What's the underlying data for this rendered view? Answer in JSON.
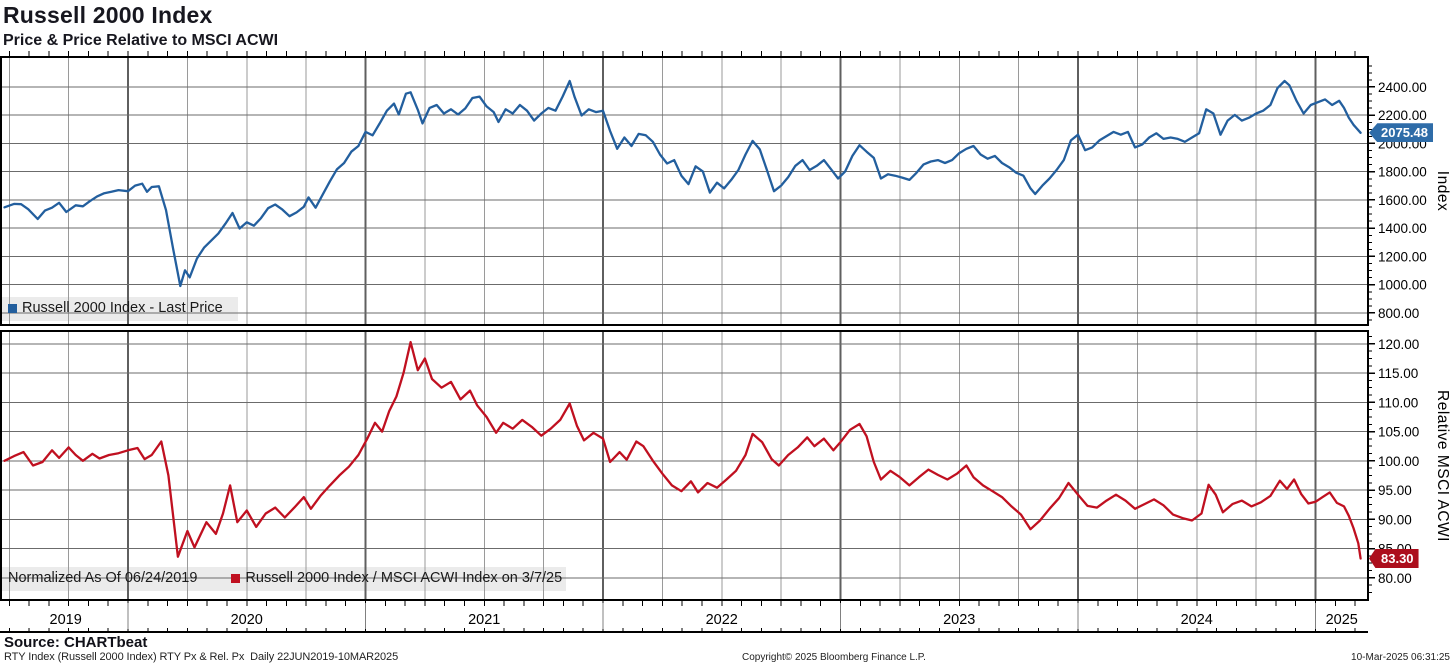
{
  "header": {
    "title": "Russell 2000 Index",
    "subtitle": "Price & Price Relative to MSCI ACWI"
  },
  "footer": {
    "source": "Source: CHARTbeat",
    "description": "RTY Index (Russell 2000 Index) RTY Px & Rel. Px  Daily 22JUN2019-10MAR2025",
    "copyright": "Copyright© 2025 Bloomberg Finance L.P.",
    "timestamp": "10-Mar-2025 06:31:25"
  },
  "colors": {
    "price_line": "#235f9e",
    "price_label_bg": "#2e6ca8",
    "relative_line": "#c01020",
    "relative_label_bg": "#ac0e1c",
    "legend_bg": "#ebebeb",
    "grid_minor": "#9a9a9a",
    "grid_year": "#5f5f5f",
    "grid_h": "#6b6b6b",
    "frame": "#000000"
  },
  "xaxis": {
    "start_decimal_year": 2019.475,
    "end_decimal_year": 2025.19,
    "years": [
      "2019",
      "2020",
      "2021",
      "2022",
      "2023",
      "2024",
      "2025"
    ],
    "boundaries": [
      2019.475,
      2020,
      2021,
      2022,
      2023,
      2024,
      2025,
      2025.285
    ]
  },
  "chart_data": [
    {
      "type": "line",
      "panel": "price",
      "title": "Russell 2000 Index - Last Price",
      "ylabel": "Index",
      "ylim": [
        715,
        2612
      ],
      "yticks": [
        800,
        1000,
        1200,
        1400,
        1600,
        1800,
        2000,
        2200,
        2400
      ],
      "ytick_minor_step": 50,
      "last_value": 2075.48,
      "last_value_label": "2075.48",
      "x": [
        2019.48,
        2019.52,
        2019.55,
        2019.58,
        2019.62,
        2019.65,
        2019.68,
        2019.71,
        2019.74,
        2019.78,
        2019.81,
        2019.84,
        2019.87,
        2019.9,
        2019.93,
        2019.96,
        2020.0,
        2020.03,
        2020.06,
        2020.08,
        2020.1,
        2020.13,
        2020.16,
        2020.19,
        2020.22,
        2020.24,
        2020.26,
        2020.29,
        2020.32,
        2020.35,
        2020.38,
        2020.41,
        2020.44,
        2020.47,
        2020.5,
        2020.53,
        2020.56,
        2020.59,
        2020.62,
        2020.65,
        2020.68,
        2020.71,
        2020.74,
        2020.76,
        2020.79,
        2020.82,
        2020.85,
        2020.88,
        2020.91,
        2020.94,
        2020.97,
        2021.0,
        2021.03,
        2021.06,
        2021.09,
        2021.12,
        2021.14,
        2021.17,
        2021.19,
        2021.22,
        2021.24,
        2021.27,
        2021.3,
        2021.33,
        2021.36,
        2021.39,
        2021.42,
        2021.45,
        2021.48,
        2021.51,
        2021.54,
        2021.56,
        2021.59,
        2021.62,
        2021.65,
        2021.68,
        2021.71,
        2021.74,
        2021.77,
        2021.8,
        2021.83,
        2021.86,
        2021.88,
        2021.91,
        2021.94,
        2021.97,
        2022.0,
        2022.03,
        2022.06,
        2022.09,
        2022.12,
        2022.15,
        2022.18,
        2022.21,
        2022.24,
        2022.27,
        2022.3,
        2022.33,
        2022.36,
        2022.39,
        2022.42,
        2022.45,
        2022.48,
        2022.51,
        2022.54,
        2022.57,
        2022.6,
        2022.63,
        2022.66,
        2022.69,
        2022.72,
        2022.75,
        2022.78,
        2022.81,
        2022.84,
        2022.87,
        2022.9,
        2022.93,
        2022.96,
        2022.99,
        2023.02,
        2023.05,
        2023.08,
        2023.11,
        2023.14,
        2023.17,
        2023.2,
        2023.23,
        2023.26,
        2023.29,
        2023.32,
        2023.35,
        2023.38,
        2023.41,
        2023.44,
        2023.47,
        2023.5,
        2023.53,
        2023.56,
        2023.59,
        2023.62,
        2023.65,
        2023.68,
        2023.71,
        2023.74,
        2023.77,
        2023.8,
        2023.82,
        2023.85,
        2023.88,
        2023.91,
        2023.94,
        2023.97,
        2024.0,
        2024.03,
        2024.06,
        2024.09,
        2024.12,
        2024.15,
        2024.18,
        2024.21,
        2024.24,
        2024.27,
        2024.3,
        2024.33,
        2024.36,
        2024.39,
        2024.42,
        2024.45,
        2024.48,
        2024.51,
        2024.54,
        2024.57,
        2024.6,
        2024.63,
        2024.66,
        2024.69,
        2024.72,
        2024.75,
        2024.78,
        2024.81,
        2024.84,
        2024.87,
        2024.89,
        2024.92,
        2024.95,
        2024.98,
        2025.01,
        2025.04,
        2025.07,
        2025.1,
        2025.12,
        2025.14,
        2025.16,
        2025.19
      ],
      "values": [
        1548,
        1572,
        1570,
        1535,
        1465,
        1525,
        1545,
        1580,
        1515,
        1562,
        1555,
        1592,
        1625,
        1648,
        1658,
        1670,
        1662,
        1702,
        1715,
        1658,
        1692,
        1697,
        1528,
        1255,
        991,
        1102,
        1052,
        1185,
        1262,
        1312,
        1362,
        1432,
        1508,
        1398,
        1442,
        1418,
        1472,
        1542,
        1568,
        1532,
        1485,
        1512,
        1552,
        1618,
        1545,
        1638,
        1732,
        1818,
        1862,
        1942,
        1982,
        2082,
        2058,
        2142,
        2232,
        2282,
        2205,
        2352,
        2362,
        2238,
        2142,
        2252,
        2272,
        2212,
        2242,
        2205,
        2248,
        2322,
        2332,
        2262,
        2222,
        2152,
        2242,
        2212,
        2272,
        2232,
        2162,
        2212,
        2252,
        2232,
        2332,
        2442,
        2331,
        2198,
        2242,
        2222,
        2232,
        2088,
        1962,
        2042,
        1982,
        2068,
        2058,
        2012,
        1922,
        1858,
        1882,
        1772,
        1712,
        1838,
        1802,
        1652,
        1722,
        1682,
        1742,
        1812,
        1922,
        2018,
        1958,
        1812,
        1662,
        1702,
        1762,
        1842,
        1882,
        1812,
        1842,
        1882,
        1818,
        1752,
        1802,
        1912,
        1988,
        1942,
        1898,
        1752,
        1782,
        1772,
        1758,
        1742,
        1792,
        1852,
        1872,
        1882,
        1862,
        1882,
        1932,
        1962,
        1982,
        1922,
        1892,
        1912,
        1862,
        1832,
        1792,
        1772,
        1682,
        1642,
        1702,
        1752,
        1812,
        1882,
        2022,
        2062,
        1952,
        1972,
        2022,
        2052,
        2082,
        2062,
        2082,
        1972,
        1992,
        2042,
        2072,
        2032,
        2042,
        2032,
        2012,
        2042,
        2072,
        2242,
        2212,
        2062,
        2162,
        2202,
        2162,
        2182,
        2212,
        2232,
        2272,
        2392,
        2442,
        2412,
        2302,
        2212,
        2272,
        2292,
        2312,
        2272,
        2302,
        2252,
        2182,
        2132,
        2075.48
      ]
    },
    {
      "type": "line",
      "panel": "relative",
      "title": "Russell 2000 Index / MSCI ACWI Index on 3/7/25",
      "normalized_note": "Normalized As Of 06/24/2019",
      "ylabel": "Relative MSCI ACWI",
      "ylim": [
        76.2,
        122.2
      ],
      "yticks": [
        80,
        85,
        90,
        95,
        100,
        105,
        110,
        115,
        120
      ],
      "ytick_minor_step": 1.25,
      "last_value": 83.3,
      "last_value_label": "83.30",
      "x": [
        2019.48,
        2019.52,
        2019.56,
        2019.6,
        2019.64,
        2019.68,
        2019.71,
        2019.75,
        2019.78,
        2019.81,
        2019.85,
        2019.88,
        2019.92,
        2019.96,
        2020.0,
        2020.04,
        2020.07,
        2020.1,
        2020.14,
        2020.17,
        2020.21,
        2020.25,
        2020.28,
        2020.33,
        2020.37,
        2020.4,
        2020.43,
        2020.46,
        2020.5,
        2020.54,
        2020.58,
        2020.62,
        2020.66,
        2020.7,
        2020.74,
        2020.77,
        2020.81,
        2020.85,
        2020.89,
        2020.93,
        2020.97,
        2021.01,
        2021.04,
        2021.07,
        2021.1,
        2021.13,
        2021.16,
        2021.19,
        2021.22,
        2021.25,
        2021.28,
        2021.32,
        2021.36,
        2021.4,
        2021.44,
        2021.47,
        2021.51,
        2021.55,
        2021.58,
        2021.62,
        2021.66,
        2021.7,
        2021.74,
        2021.78,
        2021.82,
        2021.86,
        2021.89,
        2021.92,
        2021.96,
        2022.0,
        2022.03,
        2022.07,
        2022.1,
        2022.14,
        2022.17,
        2022.21,
        2022.25,
        2022.29,
        2022.33,
        2022.37,
        2022.4,
        2022.44,
        2022.48,
        2022.52,
        2022.56,
        2022.6,
        2022.63,
        2022.67,
        2022.71,
        2022.74,
        2022.78,
        2022.82,
        2022.86,
        2022.89,
        2022.93,
        2022.97,
        2023.0,
        2023.04,
        2023.08,
        2023.11,
        2023.14,
        2023.17,
        2023.21,
        2023.25,
        2023.29,
        2023.33,
        2023.37,
        2023.41,
        2023.45,
        2023.49,
        2023.53,
        2023.56,
        2023.6,
        2023.64,
        2023.68,
        2023.72,
        2023.76,
        2023.8,
        2023.84,
        2023.88,
        2023.92,
        2023.96,
        2024.0,
        2024.04,
        2024.08,
        2024.12,
        2024.16,
        2024.2,
        2024.24,
        2024.28,
        2024.32,
        2024.36,
        2024.4,
        2024.44,
        2024.48,
        2024.52,
        2024.55,
        2024.58,
        2024.61,
        2024.65,
        2024.69,
        2024.73,
        2024.77,
        2024.81,
        2024.85,
        2024.88,
        2024.91,
        2024.94,
        2024.97,
        2025.0,
        2025.03,
        2025.06,
        2025.09,
        2025.12,
        2025.14,
        2025.16,
        2025.18,
        2025.19
      ],
      "values": [
        100.0,
        100.8,
        101.5,
        99.2,
        99.8,
        101.8,
        100.5,
        102.3,
        101.0,
        100.0,
        101.2,
        100.4,
        101.0,
        101.3,
        101.8,
        102.2,
        100.3,
        101.0,
        103.3,
        97.5,
        83.6,
        88.0,
        85.2,
        89.5,
        87.5,
        91.0,
        95.8,
        89.5,
        91.5,
        88.7,
        91.0,
        92.0,
        90.3,
        92.0,
        93.8,
        91.8,
        94.0,
        95.8,
        97.5,
        99.0,
        101.0,
        104.0,
        106.5,
        105.0,
        108.5,
        111.0,
        115.0,
        120.3,
        115.5,
        117.5,
        114.0,
        112.5,
        113.5,
        110.5,
        112.0,
        109.5,
        107.5,
        104.8,
        106.5,
        105.5,
        107.0,
        105.8,
        104.3,
        105.5,
        107.0,
        109.8,
        106.0,
        103.5,
        104.8,
        103.8,
        99.8,
        101.5,
        100.2,
        103.3,
        102.5,
        100.0,
        97.8,
        95.8,
        94.8,
        96.5,
        94.6,
        96.2,
        95.4,
        96.8,
        98.3,
        101.0,
        104.6,
        103.2,
        100.3,
        99.2,
        101.0,
        102.3,
        104.0,
        102.5,
        103.8,
        101.8,
        103.2,
        105.3,
        106.3,
        104.2,
        99.8,
        96.8,
        98.3,
        97.2,
        95.8,
        97.2,
        98.5,
        97.6,
        96.8,
        97.8,
        99.2,
        97.2,
        95.8,
        94.8,
        93.8,
        92.2,
        90.8,
        88.3,
        89.8,
        91.8,
        93.6,
        96.2,
        94.2,
        92.3,
        92.0,
        93.2,
        94.2,
        93.2,
        91.8,
        92.6,
        93.4,
        92.4,
        90.8,
        90.2,
        89.8,
        91.0,
        95.9,
        94.2,
        91.2,
        92.6,
        93.2,
        92.2,
        92.9,
        94.0,
        96.6,
        95.2,
        96.8,
        94.3,
        92.7,
        93.0,
        93.8,
        94.6,
        92.8,
        92.2,
        90.6,
        88.5,
        85.9,
        83.3
      ]
    }
  ]
}
